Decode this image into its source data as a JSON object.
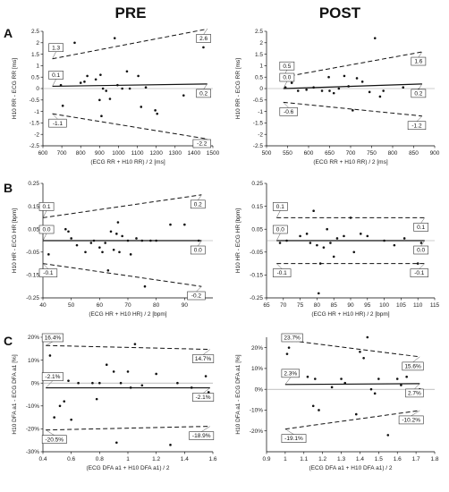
{
  "column_titles": [
    "PRE",
    "POST"
  ],
  "row_labels": [
    "A",
    "B",
    "C"
  ],
  "colors": {
    "points": "#111111",
    "lines": "#111111",
    "zero_line": "#999999"
  },
  "chart_data": [
    {
      "type": "scatter",
      "id": "A-pre",
      "xlabel": "(ECG RR + H10 RR) / 2 [ms]",
      "ylabel": "H10 RR - ECG RR [ms]",
      "xlim": [
        600,
        1500
      ],
      "ylim": [
        -2.5,
        2.5
      ],
      "xticks": [
        600,
        700,
        800,
        900,
        1000,
        1100,
        1200,
        1300,
        1400,
        1500
      ],
      "yticks": [
        -2.5,
        -2,
        -1.5,
        -1,
        -0.5,
        0,
        0.5,
        1,
        1.5,
        2,
        2.5
      ],
      "ytick_labels": [
        "-2.5",
        "-2",
        "-1.5",
        "-1",
        "-0.5",
        "0",
        "0.5",
        "1",
        "1.5",
        "2",
        "2.5"
      ],
      "points": [
        [
          695,
          0.15
        ],
        [
          705,
          -0.75
        ],
        [
          768,
          2.0
        ],
        [
          800,
          0.25
        ],
        [
          820,
          0.3
        ],
        [
          835,
          0.55
        ],
        [
          880,
          0.4
        ],
        [
          900,
          -0.5
        ],
        [
          905,
          0.6
        ],
        [
          910,
          -1.2
        ],
        [
          918,
          0.0
        ],
        [
          935,
          -0.1
        ],
        [
          955,
          -0.45
        ],
        [
          980,
          2.2
        ],
        [
          995,
          0.15
        ],
        [
          1020,
          0.0
        ],
        [
          1045,
          0.75
        ],
        [
          1060,
          0.0
        ],
        [
          1105,
          0.55
        ],
        [
          1120,
          -0.8
        ],
        [
          1145,
          0.05
        ],
        [
          1195,
          -0.95
        ],
        [
          1205,
          -1.1
        ],
        [
          1345,
          -0.3
        ],
        [
          1450,
          1.8
        ]
      ],
      "mean": [
        0.1,
        0.2
      ],
      "upper_loa": [
        1.3,
        2.6
      ],
      "lower_loa": [
        -1.1,
        -2.2
      ],
      "annotations": {
        "upper_left": "1.3",
        "upper_right": "2.6",
        "mean_left": "0.1",
        "mean_right": "0.2",
        "lower_left": "-1.1",
        "lower_right": "-2.2"
      },
      "line_span": [
        650,
        1470
      ]
    },
    {
      "type": "scatter",
      "id": "A-post",
      "xlabel": "(ECG RR + H10 RR) / 2 [ms]",
      "ylabel": "H10 RR - ECG RR [ms]",
      "xlim": [
        500,
        900
      ],
      "ylim": [
        -2.5,
        2.5
      ],
      "xticks": [
        500,
        550,
        600,
        650,
        700,
        750,
        800,
        850,
        900
      ],
      "yticks": [
        -2.5,
        -2,
        -1.5,
        -1,
        -0.5,
        0,
        0.5,
        1,
        1.5,
        2,
        2.5
      ],
      "ytick_labels": [
        "-2.5",
        "-2",
        "-1.5",
        "-1",
        "-0.5",
        "0",
        "0.5",
        "1",
        "1.5",
        "2",
        "2.5"
      ],
      "points": [
        [
          545,
          0.05
        ],
        [
          548,
          0.4
        ],
        [
          560,
          0.25
        ],
        [
          575,
          -0.1
        ],
        [
          595,
          -0.05
        ],
        [
          612,
          0.05
        ],
        [
          632,
          -0.1
        ],
        [
          648,
          0.5
        ],
        [
          650,
          -0.1
        ],
        [
          660,
          -0.2
        ],
        [
          672,
          0.0
        ],
        [
          685,
          0.55
        ],
        [
          695,
          0.1
        ],
        [
          705,
          -0.95
        ],
        [
          715,
          0.45
        ],
        [
          728,
          0.3
        ],
        [
          745,
          -0.15
        ],
        [
          758,
          2.2
        ],
        [
          770,
          -0.35
        ],
        [
          778,
          -0.1
        ],
        [
          825,
          0.05
        ],
        [
          862,
          -0.05
        ]
      ],
      "mean": [
        0.0,
        0.2
      ],
      "upper_loa": [
        0.5,
        1.6
      ],
      "lower_loa": [
        -0.6,
        -1.2
      ],
      "annotations": {
        "upper_left": "0.5",
        "upper_right": "1.6",
        "mean_left": "0.0",
        "mean_right": "0.2",
        "lower_left": "-0.6",
        "lower_right": "-1.2"
      },
      "line_span": [
        540,
        870
      ]
    },
    {
      "type": "scatter",
      "id": "B-pre",
      "xlabel": "(ECG HR + H10 HR) / 2 [bpm]",
      "ylabel": "H10 HR - ECG HR [bpm]",
      "xlim": [
        40,
        100
      ],
      "ylim": [
        -0.25,
        0.25
      ],
      "xticks": [
        40,
        50,
        60,
        70,
        80,
        90
      ],
      "yticks": [
        -0.25,
        -0.15,
        -0.05,
        0.05,
        0.15,
        0.25
      ],
      "ytick_labels": [
        "-0.25",
        "-0.15",
        "-0.05",
        "0.05",
        "0.15",
        "0.25"
      ],
      "points": [
        [
          42,
          -0.06
        ],
        [
          48,
          0.05
        ],
        [
          49,
          0.04
        ],
        [
          50,
          0.01
        ],
        [
          52,
          -0.02
        ],
        [
          55,
          -0.05
        ],
        [
          57,
          -0.01
        ],
        [
          58,
          0.0
        ],
        [
          60,
          -0.03
        ],
        [
          61,
          -0.05
        ],
        [
          62,
          -0.01
        ],
        [
          63,
          -0.13
        ],
        [
          64,
          0.04
        ],
        [
          65,
          -0.04
        ],
        [
          66,
          0.03
        ],
        [
          66.5,
          0.08
        ],
        [
          67,
          -0.05
        ],
        [
          68,
          0.02
        ],
        [
          70,
          0.0
        ],
        [
          71,
          -0.06
        ],
        [
          73,
          0.01
        ],
        [
          75,
          0.0
        ],
        [
          76,
          -0.2
        ],
        [
          78,
          0.0
        ],
        [
          80,
          0.0
        ],
        [
          85,
          0.07
        ],
        [
          90,
          0.07
        ],
        [
          95,
          0.0
        ]
      ],
      "mean": [
        0.0,
        0.0
      ],
      "upper_loa": [
        0.1,
        0.2
      ],
      "lower_loa": [
        -0.1,
        -0.2
      ],
      "annotations": {
        "upper_left": "0.1",
        "upper_right": "0.2",
        "mean_left": "0.0",
        "mean_right": "0.0",
        "lower_left": "-0.1",
        "lower_right": "-0.2"
      },
      "line_span": [
        40,
        96
      ]
    },
    {
      "type": "scatter",
      "id": "B-post",
      "xlabel": "(ECG HR + H10 HR) / 2 [bpm]",
      "ylabel": "H10 HR - ECG HR [bpm]",
      "xlim": [
        65,
        115
      ],
      "ylim": [
        -0.25,
        0.25
      ],
      "xticks": [
        65,
        70,
        75,
        80,
        85,
        90,
        95,
        100,
        105,
        110,
        115
      ],
      "yticks": [
        -0.25,
        -0.15,
        -0.05,
        0.05,
        0.15,
        0.25
      ],
      "ytick_labels": [
        "-0.25",
        "-0.15",
        "-0.05",
        "0.05",
        "0.15",
        "0.25"
      ],
      "points": [
        [
          69,
          -0.01
        ],
        [
          71,
          0.0
        ],
        [
          75,
          0.02
        ],
        [
          77,
          0.03
        ],
        [
          78,
          -0.01
        ],
        [
          79,
          0.13
        ],
        [
          80,
          -0.02
        ],
        [
          80.5,
          -0.23
        ],
        [
          81,
          -0.1
        ],
        [
          82,
          -0.03
        ],
        [
          83,
          0.05
        ],
        [
          84,
          -0.01
        ],
        [
          85,
          -0.07
        ],
        [
          86,
          0.01
        ],
        [
          88,
          0.02
        ],
        [
          90,
          0.1
        ],
        [
          91,
          -0.05
        ],
        [
          93,
          0.03
        ],
        [
          95,
          0.02
        ],
        [
          100,
          0.0
        ],
        [
          103,
          -0.02
        ],
        [
          106,
          0.01
        ],
        [
          110,
          -0.1
        ],
        [
          111,
          -0.01
        ]
      ],
      "mean": [
        0.0,
        0.0
      ],
      "upper_loa": [
        0.1,
        0.1
      ],
      "lower_loa": [
        -0.1,
        -0.1
      ],
      "annotations": {
        "upper_left": "0.1",
        "upper_right": "0.1",
        "mean_left": "0.0",
        "mean_right": "0.0",
        "lower_left": "-0.1",
        "lower_right": "-0.1"
      },
      "line_span": [
        68,
        112
      ]
    },
    {
      "type": "scatter",
      "id": "C-pre",
      "xlabel": "(ECG DFA a1 + H10 DFA a1) / 2",
      "ylabel": "H10 DFA a1 - ECG DFA a1 [%]",
      "xlim": [
        0.4,
        1.6
      ],
      "ylim": [
        -30,
        20
      ],
      "xticks": [
        0.4,
        0.6,
        0.8,
        1.0,
        1.2,
        1.4,
        1.6
      ],
      "xtick_labels": [
        "0.4",
        "0.6",
        "0.8",
        "1",
        "1.2",
        "1.4",
        "1.6"
      ],
      "yticks": [
        -30,
        -20,
        -10,
        0,
        10,
        20
      ],
      "ytick_labels": [
        "-30%",
        "-20%",
        "-10%",
        "0%",
        "10%",
        "20%"
      ],
      "points": [
        [
          0.45,
          12
        ],
        [
          0.48,
          -15
        ],
        [
          0.52,
          -10
        ],
        [
          0.55,
          -8
        ],
        [
          0.58,
          1
        ],
        [
          0.6,
          -16
        ],
        [
          0.65,
          0
        ],
        [
          0.75,
          0
        ],
        [
          0.78,
          -7
        ],
        [
          0.8,
          0
        ],
        [
          0.85,
          8
        ],
        [
          0.9,
          5
        ],
        [
          0.92,
          -26
        ],
        [
          0.95,
          0
        ],
        [
          1.0,
          5
        ],
        [
          1.02,
          -2
        ],
        [
          1.05,
          17
        ],
        [
          1.1,
          -1
        ],
        [
          1.2,
          4
        ],
        [
          1.3,
          -27
        ],
        [
          1.35,
          0
        ],
        [
          1.45,
          -2
        ],
        [
          1.55,
          3
        ],
        [
          1.57,
          -4
        ]
      ],
      "mean": [
        -2.1,
        -2.1
      ],
      "upper_loa": [
        16.4,
        14.7
      ],
      "lower_loa": [
        -20.5,
        -18.9
      ],
      "annotations": {
        "upper_left": "16.4%",
        "upper_right": "14.7%",
        "mean_left": "-2.1%",
        "mean_right": "-2.1%",
        "lower_left": "-20.5%",
        "lower_right": "-18.9%"
      },
      "line_span": [
        0.42,
        1.58
      ]
    },
    {
      "type": "scatter",
      "id": "C-post",
      "xlabel": "(ECG DFA a1 + H10 DFA a1) / 2",
      "ylabel": "H10 DFA a1 - ECG DFA a1 [%]",
      "xlim": [
        0.9,
        1.8
      ],
      "ylim": [
        -30,
        25
      ],
      "xticks": [
        0.9,
        1.0,
        1.1,
        1.2,
        1.3,
        1.4,
        1.5,
        1.6,
        1.7,
        1.8
      ],
      "xtick_labels": [
        "0.9",
        "1",
        "1.1",
        "1.2",
        "1.3",
        "1.4",
        "1.5",
        "1.6",
        "1.7",
        "1.8"
      ],
      "yticks": [
        -20,
        -10,
        0,
        10,
        20
      ],
      "ytick_labels": [
        "-20%",
        "-10%",
        "0%",
        "10%",
        "20%"
      ],
      "points": [
        [
          1.01,
          17
        ],
        [
          1.02,
          20
        ],
        [
          1.12,
          6
        ],
        [
          1.15,
          -8
        ],
        [
          1.16,
          5
        ],
        [
          1.18,
          -10
        ],
        [
          1.25,
          1
        ],
        [
          1.3,
          5
        ],
        [
          1.32,
          3
        ],
        [
          1.38,
          -12
        ],
        [
          1.4,
          18
        ],
        [
          1.42,
          15
        ],
        [
          1.44,
          25
        ],
        [
          1.46,
          0
        ],
        [
          1.48,
          -2
        ],
        [
          1.5,
          5
        ],
        [
          1.55,
          -22
        ],
        [
          1.6,
          5
        ],
        [
          1.62,
          2
        ],
        [
          1.65,
          6
        ],
        [
          1.7,
          -1
        ],
        [
          1.72,
          0
        ]
      ],
      "mean": [
        2.3,
        2.7
      ],
      "upper_loa": [
        23.7,
        15.6
      ],
      "lower_loa": [
        -19.1,
        -10.2
      ],
      "annotations": {
        "upper_left": "23.7%",
        "upper_right": "15.6%",
        "mean_left": "2.3%",
        "mean_right": "2.7%",
        "lower_left": "-19.1%",
        "lower_right": "-10.2%"
      },
      "line_span": [
        1.0,
        1.72
      ]
    }
  ]
}
